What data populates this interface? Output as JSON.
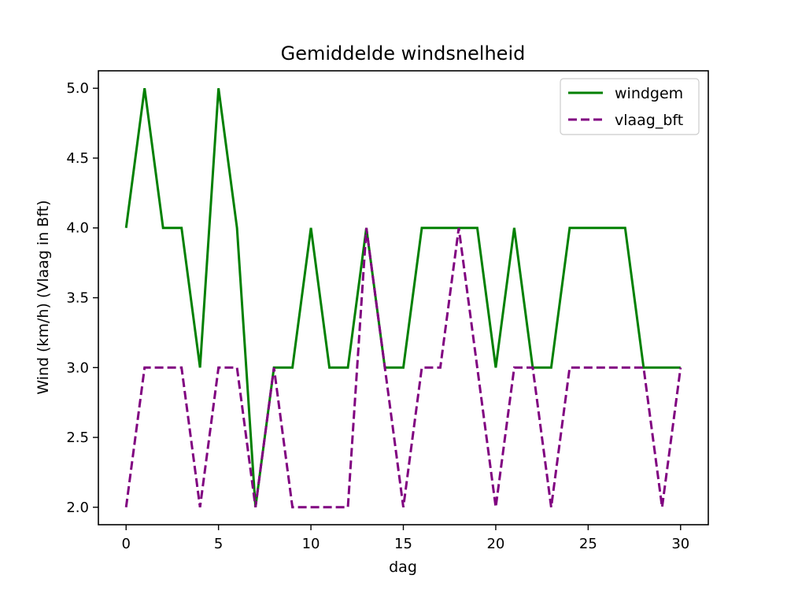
{
  "chart_data": {
    "type": "line",
    "title": "Gemiddelde windsnelheid",
    "xlabel": "dag",
    "ylabel": "Wind (km/h) (Vlaag in Bft)",
    "xlim": [
      -1.5,
      31.5
    ],
    "ylim": [
      1.875,
      5.125
    ],
    "xticks": [
      0,
      5,
      10,
      15,
      20,
      25,
      30
    ],
    "xtick_labels": [
      "0",
      "5",
      "10",
      "15",
      "20",
      "25",
      "30"
    ],
    "yticks": [
      2.0,
      2.5,
      3.0,
      3.5,
      4.0,
      4.5,
      5.0
    ],
    "ytick_labels": [
      "2.0",
      "2.5",
      "3.0",
      "3.5",
      "4.0",
      "4.5",
      "5.0"
    ],
    "grid": false,
    "legend_position": "top-right",
    "x": [
      0,
      1,
      2,
      3,
      4,
      5,
      6,
      7,
      8,
      9,
      10,
      11,
      12,
      13,
      14,
      15,
      16,
      17,
      18,
      19,
      20,
      21,
      22,
      23,
      24,
      25,
      26,
      27,
      28,
      29,
      30
    ],
    "series": [
      {
        "name": "windgem",
        "color": "#008000",
        "line_style": "solid",
        "values": [
          4,
          5,
          4,
          4,
          3,
          5,
          4,
          2,
          3,
          3,
          4,
          3,
          3,
          4,
          3,
          3,
          4,
          4,
          4,
          4,
          3,
          4,
          3,
          3,
          4,
          4,
          4,
          4,
          3,
          3,
          3
        ]
      },
      {
        "name": "vlaag_bft",
        "color": "#800080",
        "line_style": "dashed",
        "values": [
          2,
          3,
          3,
          3,
          2,
          3,
          3,
          2,
          3,
          2,
          2,
          2,
          2,
          4,
          3,
          2,
          3,
          3,
          4,
          3,
          2,
          3,
          3,
          2,
          3,
          3,
          3,
          3,
          3,
          2,
          3
        ]
      }
    ]
  }
}
